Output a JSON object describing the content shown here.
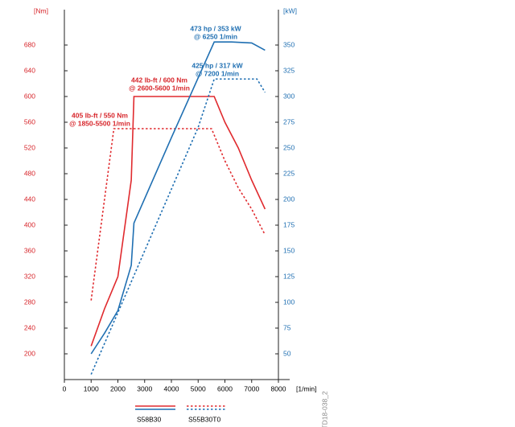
{
  "chart_data": {
    "type": "line",
    "xlabel": "[1/min]",
    "ylabel": "[Nm]",
    "y2label": "[kW]",
    "xlim": [
      0,
      8000
    ],
    "xticks": [
      0,
      1000,
      2000,
      3000,
      4000,
      5000,
      6000,
      7000,
      8000
    ],
    "ylim": [
      160,
      720
    ],
    "yticks": [
      200,
      240,
      280,
      320,
      360,
      400,
      440,
      480,
      520,
      560,
      600,
      640,
      680
    ],
    "y2lim": [
      25,
      375
    ],
    "y2ticks": [
      50,
      75,
      100,
      125,
      150,
      175,
      200,
      225,
      250,
      275,
      300,
      325,
      350
    ],
    "ycolor": "#d7262b",
    "y2color": "#1f6fb2",
    "series": [
      {
        "name": "S58B30",
        "color": "#e02a2e",
        "dash": "solid",
        "x": [
          1000,
          1500,
          2000,
          2500,
          2600,
          5600,
          6000,
          6500,
          7000,
          7500
        ],
        "values": [
          212,
          270,
          320,
          470,
          600,
          600,
          560,
          520,
          470,
          425
        ]
      },
      {
        "name": "S55B30T0",
        "color": "#e02a2e",
        "dash": "dotted",
        "x": [
          1000,
          1850,
          5500,
          6000,
          6500,
          7000,
          7500
        ],
        "values": [
          283,
          550,
          550,
          500,
          458,
          425,
          385
        ]
      },
      {
        "name": "S58B30",
        "color": "#1f6fb2",
        "dash": "solid",
        "axis": "y2",
        "x": [
          1000,
          1500,
          2000,
          2500,
          2600,
          4000,
          5600,
          6250,
          7000,
          7500
        ],
        "values": [
          50,
          70,
          92,
          136,
          177,
          260,
          353,
          353,
          352,
          345
        ]
      },
      {
        "name": "S55B30T0",
        "color": "#1f6fb2",
        "dash": "dotted",
        "axis": "y2",
        "x": [
          1000,
          2000,
          3000,
          4000,
          5000,
          5600,
          7200,
          7500
        ],
        "values": [
          30,
          90,
          150,
          210,
          270,
          317,
          317,
          304
        ]
      }
    ],
    "annotations": [
      {
        "lines": [
          "473 hp / 353 kW",
          "@ 6250 1/min"
        ],
        "color": "#1f6fb2"
      },
      {
        "lines": [
          "425 hp / 317 kW",
          "@ 7200 1/min"
        ],
        "color": "#1f6fb2"
      },
      {
        "lines": [
          "442 lb-ft / 600 Nm",
          "@ 2600-5600 1/min"
        ],
        "color": "#d7262b"
      },
      {
        "lines": [
          "405 lb-ft / 550 Nm",
          "@ 1850-5500 1/min"
        ],
        "color": "#d7262b"
      }
    ],
    "code": "TD18-038_2"
  }
}
